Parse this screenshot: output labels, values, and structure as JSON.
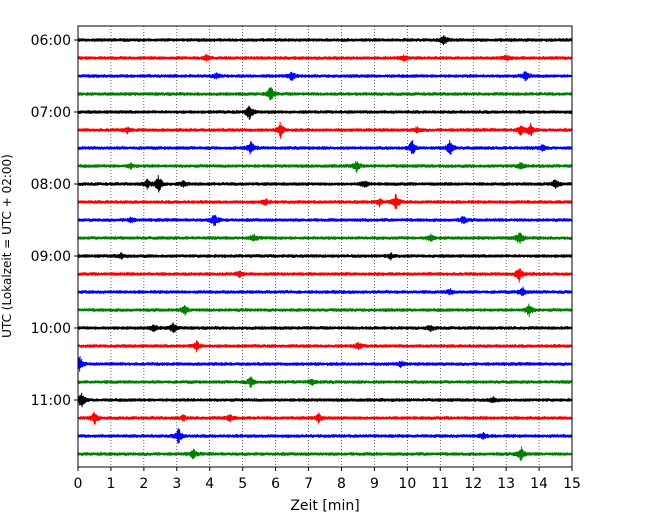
{
  "chart_data": {
    "type": "line",
    "xlabel": "Zeit  [min]",
    "ylabel": "UTC (Lokalzeit = UTC + 02:00)",
    "xlim": [
      0,
      15
    ],
    "x_ticks": [
      0,
      1,
      2,
      3,
      4,
      5,
      6,
      7,
      8,
      9,
      10,
      11,
      12,
      13,
      14,
      15
    ],
    "x_tick_labels": [
      "0",
      "1",
      "2",
      "3",
      "4",
      "5",
      "6",
      "7",
      "8",
      "9",
      "10",
      "11",
      "12",
      "13",
      "14",
      "15"
    ],
    "y_tick_labels": [
      "06:00",
      "07:00",
      "08:00",
      "09:00",
      "10:00",
      "11:00"
    ],
    "trace_minutes": 15,
    "trace_colors": [
      "#000000",
      "#ff0000",
      "#0000ff",
      "#008000"
    ],
    "traces": [
      {
        "start": "06:00",
        "color": "#000000",
        "events": [
          [
            11.1,
            0.6
          ]
        ]
      },
      {
        "start": "06:15",
        "color": "#ff0000",
        "events": [
          [
            3.9,
            0.3
          ],
          [
            9.9,
            0.3
          ],
          [
            13.0,
            0.3
          ]
        ]
      },
      {
        "start": "06:30",
        "color": "#0000ff",
        "events": [
          [
            6.5,
            0.5
          ],
          [
            13.6,
            0.6
          ],
          [
            4.2,
            0.3
          ]
        ]
      },
      {
        "start": "06:45",
        "color": "#008000",
        "events": [
          [
            5.85,
            0.9
          ]
        ]
      },
      {
        "start": "07:00",
        "color": "#000000",
        "events": [
          [
            5.2,
            1.0
          ]
        ]
      },
      {
        "start": "07:15",
        "color": "#ff0000",
        "events": [
          [
            6.15,
            0.8
          ],
          [
            13.45,
            0.6
          ],
          [
            13.75,
            0.7
          ],
          [
            1.5,
            0.3
          ],
          [
            10.3,
            0.3
          ]
        ]
      },
      {
        "start": "07:30",
        "color": "#0000ff",
        "events": [
          [
            5.25,
            0.8
          ],
          [
            10.15,
            0.9
          ],
          [
            11.3,
            0.9
          ],
          [
            14.1,
            0.3
          ]
        ]
      },
      {
        "start": "07:45",
        "color": "#008000",
        "events": [
          [
            8.45,
            0.6
          ],
          [
            13.45,
            0.4
          ],
          [
            1.6,
            0.3
          ]
        ]
      },
      {
        "start": "08:00",
        "color": "#000000",
        "events": [
          [
            2.45,
            1.0
          ],
          [
            8.7,
            0.4
          ],
          [
            14.5,
            0.6
          ],
          [
            2.1,
            0.5
          ],
          [
            3.2,
            0.3
          ]
        ]
      },
      {
        "start": "08:15",
        "color": "#ff0000",
        "events": [
          [
            9.65,
            0.9
          ],
          [
            5.7,
            0.4
          ],
          [
            9.15,
            0.4
          ]
        ]
      },
      {
        "start": "08:30",
        "color": "#0000ff",
        "events": [
          [
            4.15,
            0.8
          ],
          [
            11.7,
            0.4
          ],
          [
            1.6,
            0.3
          ]
        ]
      },
      {
        "start": "08:45",
        "color": "#008000",
        "events": [
          [
            13.4,
            0.7
          ],
          [
            5.35,
            0.4
          ],
          [
            10.7,
            0.4
          ]
        ]
      },
      {
        "start": "09:00",
        "color": "#000000",
        "events": [
          [
            9.5,
            0.3
          ],
          [
            1.3,
            0.3
          ]
        ]
      },
      {
        "start": "09:15",
        "color": "#ff0000",
        "events": [
          [
            13.4,
            0.8
          ],
          [
            4.9,
            0.4
          ]
        ]
      },
      {
        "start": "09:30",
        "color": "#0000ff",
        "events": [
          [
            13.5,
            0.5
          ],
          [
            11.3,
            0.3
          ]
        ]
      },
      {
        "start": "09:45",
        "color": "#008000",
        "events": [
          [
            13.7,
            0.7
          ],
          [
            3.25,
            0.5
          ]
        ]
      },
      {
        "start": "10:00",
        "color": "#000000",
        "events": [
          [
            2.9,
            0.6
          ],
          [
            2.3,
            0.4
          ],
          [
            10.7,
            0.3
          ]
        ]
      },
      {
        "start": "10:15",
        "color": "#ff0000",
        "events": [
          [
            3.6,
            0.6
          ],
          [
            8.5,
            0.4
          ]
        ]
      },
      {
        "start": "10:30",
        "color": "#0000ff",
        "events": [
          [
            0.05,
            0.9
          ],
          [
            9.8,
            0.3
          ]
        ]
      },
      {
        "start": "10:45",
        "color": "#008000",
        "events": [
          [
            5.25,
            0.6
          ],
          [
            7.1,
            0.4
          ]
        ]
      },
      {
        "start": "11:00",
        "color": "#000000",
        "events": [
          [
            0.1,
            0.9
          ],
          [
            12.6,
            0.3
          ]
        ]
      },
      {
        "start": "11:15",
        "color": "#ff0000",
        "events": [
          [
            0.5,
            0.7
          ],
          [
            4.6,
            0.4
          ],
          [
            7.3,
            0.5
          ],
          [
            3.2,
            0.3
          ]
        ]
      },
      {
        "start": "11:30",
        "color": "#0000ff",
        "events": [
          [
            3.05,
            0.9
          ],
          [
            12.3,
            0.4
          ]
        ]
      },
      {
        "start": "11:45",
        "color": "#008000",
        "events": [
          [
            13.45,
            0.8
          ],
          [
            3.5,
            0.5
          ]
        ]
      }
    ]
  }
}
